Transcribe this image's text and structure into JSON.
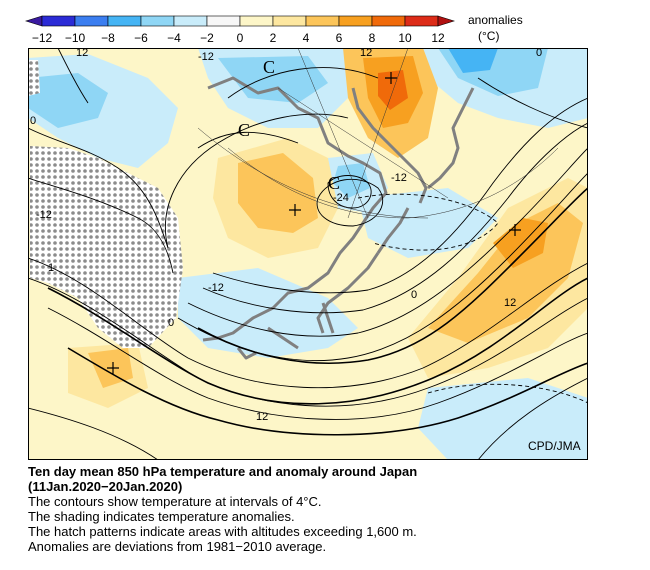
{
  "legend": {
    "ticks": [
      "-12",
      "-10",
      "-8",
      "-6",
      "-4",
      "-2",
      "0",
      "2",
      "4",
      "6",
      "8",
      "10",
      "12"
    ],
    "colors": [
      "#2b2bd6",
      "#3b7ef0",
      "#45b4f4",
      "#8fd6f5",
      "#c9ecfa",
      "#f7f7f7",
      "#fdf6c8",
      "#fde7a0",
      "#fcc55a",
      "#f7a020",
      "#f06a0a",
      "#dd2c18"
    ],
    "label_line1": "anomalies",
    "label_line2": "(°C)"
  },
  "map": {
    "contour_labels": [
      "12",
      "-12",
      "12",
      "0",
      "-12",
      "C",
      "C",
      "C",
      "-12",
      "-24",
      "-12",
      "1",
      "0",
      "0",
      "12",
      "12",
      "0"
    ],
    "credit": "CPD/JMA"
  },
  "caption": {
    "title_line1": "Ten day mean 850 hPa temperature and anomaly around Japan",
    "title_line2": "(11Jan.2020−20Jan.2020)",
    "lines": [
      "The contours show temperature at intervals of 4°C.",
      "The shading indicates temperature anomalies.",
      "The hatch patterns indicate areas with altitudes exceeding 1,600 m.",
      "Anomalies are deviations from 1981−2010 average."
    ]
  }
}
